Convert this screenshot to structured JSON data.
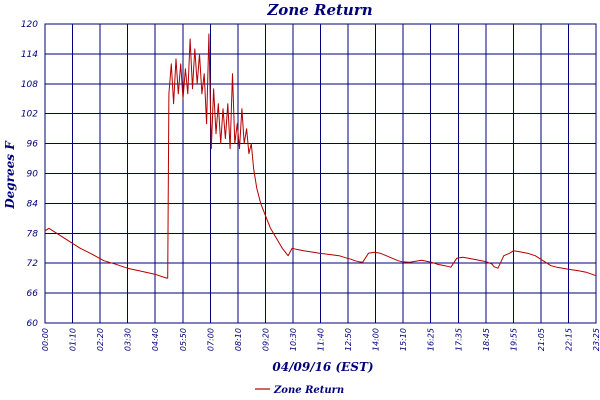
{
  "chart_data": {
    "type": "line",
    "title": "Zone Return",
    "xlabel": "04/09/16 (EST)",
    "ylabel": "Degrees F",
    "ylim": [
      60,
      120
    ],
    "xlim": [
      "00:00",
      "23:25"
    ],
    "grid": true,
    "legend": "bottom-left",
    "yticks": [
      "60",
      "66",
      "72",
      "78",
      "84",
      "90",
      "96",
      "102",
      "108",
      "114",
      "120"
    ],
    "xticks": [
      "00:00",
      "01:10",
      "02:20",
      "03:30",
      "04:40",
      "05:50",
      "07:00",
      "08:10",
      "09:20",
      "10:30",
      "11:40",
      "12:50",
      "14:00",
      "15:10",
      "16:25",
      "17:35",
      "18:45",
      "19:55",
      "21:05",
      "22:15",
      "23:25"
    ],
    "series": [
      {
        "name": "Zone Return",
        "color": "#b40000",
        "x": [
          "00:00",
          "00:10",
          "00:30",
          "01:00",
          "01:30",
          "02:00",
          "02:30",
          "03:00",
          "03:30",
          "04:00",
          "04:40",
          "05:10",
          "05:13",
          "05:16",
          "05:22",
          "05:28",
          "05:34",
          "05:40",
          "05:46",
          "05:52",
          "05:58",
          "06:04",
          "06:10",
          "06:16",
          "06:22",
          "06:28",
          "06:34",
          "06:40",
          "06:46",
          "06:52",
          "06:58",
          "07:04",
          "07:10",
          "07:16",
          "07:22",
          "07:28",
          "07:34",
          "07:40",
          "07:46",
          "07:52",
          "07:58",
          "08:04",
          "08:10",
          "08:16",
          "08:22",
          "08:28",
          "08:34",
          "08:40",
          "08:46",
          "08:52",
          "09:00",
          "09:10",
          "09:20",
          "09:35",
          "09:50",
          "10:05",
          "10:20",
          "10:30",
          "10:40",
          "11:00",
          "11:40",
          "12:00",
          "12:30",
          "12:50",
          "13:00",
          "13:10",
          "13:20",
          "13:30",
          "13:45",
          "14:00",
          "14:15",
          "14:30",
          "14:45",
          "15:00",
          "15:10",
          "15:30",
          "15:45",
          "16:00",
          "16:25",
          "16:40",
          "17:00",
          "17:15",
          "17:30",
          "17:45",
          "18:00",
          "18:20",
          "18:45",
          "19:00",
          "19:05",
          "19:15",
          "19:30",
          "19:45",
          "19:55",
          "20:10",
          "20:30",
          "20:50",
          "21:10",
          "21:30",
          "21:45",
          "22:00",
          "22:15",
          "22:40",
          "23:00",
          "23:25"
        ],
        "values": [
          78.5,
          79,
          78,
          76.5,
          75,
          73.8,
          72.5,
          71.8,
          71,
          70.5,
          69.8,
          69,
          69,
          106,
          112,
          104,
          113,
          106,
          112,
          105,
          111,
          106,
          117,
          107,
          115,
          108,
          114,
          106,
          110,
          100,
          118,
          95,
          107,
          98,
          104,
          96,
          103,
          97,
          104,
          95,
          110,
          96,
          100,
          95,
          103,
          96,
          99,
          94,
          96,
          91,
          87,
          84,
          82,
          79,
          77,
          75,
          73.5,
          75,
          74.8,
          74.5,
          74,
          73.8,
          73.5,
          73,
          72.8,
          72.5,
          72.3,
          72.2,
          74,
          74.2,
          74,
          73.5,
          73,
          72.5,
          72.3,
          72.2,
          72.4,
          72.6,
          72.2,
          71.8,
          71.5,
          71.2,
          73,
          73.2,
          73,
          72.7,
          72.3,
          71.8,
          71.3,
          71,
          73.5,
          74,
          74.5,
          74.3,
          74,
          73.5,
          72.5,
          71.5,
          71.2,
          71,
          70.8,
          70.5,
          70.2,
          69.5
        ]
      }
    ]
  }
}
